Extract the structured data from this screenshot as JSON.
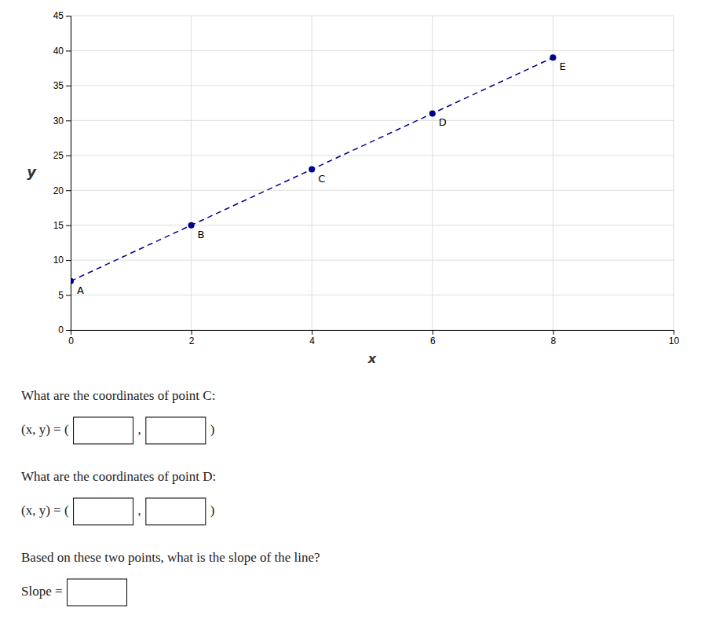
{
  "chart_data": {
    "type": "line",
    "x": [
      0,
      2,
      4,
      6,
      8
    ],
    "values": [
      7,
      15,
      23,
      31,
      39
    ],
    "labels": [
      "A",
      "B",
      "C",
      "D",
      "E"
    ],
    "color": "#00008B",
    "line_style": "dashed",
    "marker": "circle",
    "xlim": [
      0,
      10
    ],
    "ylim": [
      0,
      45
    ],
    "xticks": [
      0,
      2,
      4,
      6,
      8,
      10
    ],
    "yticks": [
      0,
      5,
      10,
      15,
      20,
      25,
      30,
      35,
      40,
      45
    ],
    "grid": true,
    "xlabel": "x",
    "ylabel": "y",
    "annotations": [
      "What are the coordinates of point C:",
      "(x, y) = (",
      ",",
      ")",
      "What are the coordinates of point D:",
      "(x, y) = (",
      ",",
      ")",
      "Based on these two points, what is the slope of the line?",
      "Slope ="
    ]
  }
}
